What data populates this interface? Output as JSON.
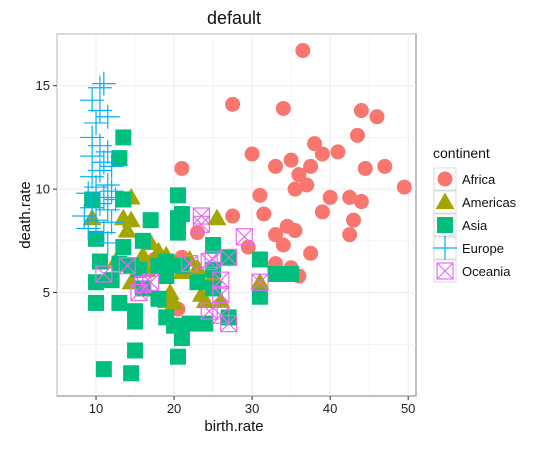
{
  "chart_data": {
    "type": "scatter",
    "title": "default",
    "xlabel": "birth.rate",
    "ylabel": "death.rate",
    "xlim": [
      5,
      51
    ],
    "ylim": [
      0,
      17.5
    ],
    "xticks": [
      10,
      20,
      30,
      40,
      50
    ],
    "yticks": [
      5,
      10,
      15
    ],
    "grid": true,
    "legend": {
      "title": "continent",
      "position": "right"
    },
    "series": [
      {
        "name": "Africa",
        "shape": "circle",
        "color": "#F8766D",
        "points": [
          [
            36.5,
            16.7
          ],
          [
            27.5,
            14.1
          ],
          [
            34,
            13.9
          ],
          [
            44,
            13.8
          ],
          [
            46,
            13.5
          ],
          [
            43.5,
            12.6
          ],
          [
            38,
            12.2
          ],
          [
            41,
            11.8
          ],
          [
            39,
            11.7
          ],
          [
            35,
            11.4
          ],
          [
            33,
            11.1
          ],
          [
            37.5,
            11.1
          ],
          [
            44.5,
            11.0
          ],
          [
            47,
            11.1
          ],
          [
            21,
            11.0
          ],
          [
            30,
            11.7
          ],
          [
            36,
            10.7
          ],
          [
            37,
            10.2
          ],
          [
            49.5,
            10.1
          ],
          [
            35.5,
            10.0
          ],
          [
            31,
            9.7
          ],
          [
            40,
            9.6
          ],
          [
            42.5,
            9.6
          ],
          [
            44,
            9.4
          ],
          [
            39,
            8.9
          ],
          [
            31.5,
            8.8
          ],
          [
            43,
            8.5
          ],
          [
            34.5,
            8.2
          ],
          [
            35.5,
            8.0
          ],
          [
            27.5,
            8.7
          ],
          [
            33,
            7.8
          ],
          [
            29.5,
            7.2
          ],
          [
            34,
            7.3
          ],
          [
            37.5,
            6.9
          ],
          [
            33,
            6.4
          ],
          [
            35,
            6.2
          ],
          [
            36,
            5.8
          ],
          [
            42.5,
            7.8
          ],
          [
            23,
            7.9
          ],
          [
            21,
            6.7
          ],
          [
            17.5,
            6.6
          ],
          [
            20.5,
            4.2
          ]
        ]
      },
      {
        "name": "Americas",
        "shape": "triangle",
        "color": "#A3A500",
        "points": [
          [
            14.5,
            9.6
          ],
          [
            9.5,
            8.6
          ],
          [
            14.5,
            8.5
          ],
          [
            13.5,
            8.6
          ],
          [
            14,
            8.0
          ],
          [
            17,
            7.4
          ],
          [
            18,
            7.0
          ],
          [
            16,
            6.8
          ],
          [
            12.5,
            6.5
          ],
          [
            19,
            6.8
          ],
          [
            20,
            6.4
          ],
          [
            22,
            6.6
          ],
          [
            23,
            6.2
          ],
          [
            21,
            6.0
          ],
          [
            25,
            5.8
          ],
          [
            14.5,
            5.5
          ],
          [
            19.5,
            5.0
          ],
          [
            20,
            4.5
          ],
          [
            23.5,
            4.9
          ],
          [
            24,
            4.6
          ],
          [
            26,
            4.6
          ],
          [
            19,
            4.6
          ],
          [
            16.5,
            6.1
          ],
          [
            25.5,
            8.6
          ],
          [
            31,
            5.5
          ]
        ]
      },
      {
        "name": "Asia",
        "shape": "square",
        "color": "#00BF7D",
        "points": [
          [
            13.5,
            12.5
          ],
          [
            13,
            11.5
          ],
          [
            9.5,
            9.5
          ],
          [
            13.5,
            9.5
          ],
          [
            20.5,
            9.7
          ],
          [
            20.5,
            8.6
          ],
          [
            21,
            8.8
          ],
          [
            17,
            8.5
          ],
          [
            16,
            7.5
          ],
          [
            10,
            7.6
          ],
          [
            13.5,
            7.2
          ],
          [
            20.5,
            7.9
          ],
          [
            25,
            7.3
          ],
          [
            10.5,
            6.5
          ],
          [
            13,
            6.4
          ],
          [
            14.5,
            6.3
          ],
          [
            15.5,
            6.1
          ],
          [
            18,
            6.3
          ],
          [
            19,
            6.5
          ],
          [
            21,
            6.3
          ],
          [
            25,
            6.1
          ],
          [
            27,
            6.7
          ],
          [
            31,
            6.6
          ],
          [
            35,
            5.9
          ],
          [
            33,
            5.9
          ],
          [
            12,
            5.6
          ],
          [
            10,
            5.5
          ],
          [
            16,
            5.2
          ],
          [
            19,
            5.8
          ],
          [
            23,
            5.5
          ],
          [
            25,
            5.2
          ],
          [
            13,
            4.5
          ],
          [
            10,
            4.5
          ],
          [
            15,
            4.1
          ],
          [
            18,
            4.7
          ],
          [
            19,
            3.8
          ],
          [
            20,
            3.4
          ],
          [
            21,
            2.8
          ],
          [
            22,
            3.5
          ],
          [
            24,
            3.5
          ],
          [
            27,
            3.8
          ],
          [
            31,
            4.8
          ],
          [
            15,
            3.6
          ],
          [
            15,
            2.2
          ],
          [
            20.5,
            1.9
          ],
          [
            11,
            1.3
          ],
          [
            14.5,
            1.1
          ]
        ]
      },
      {
        "name": "Europe",
        "shape": "plus",
        "color": "#00B0F6",
        "points": [
          [
            10.5,
            14.9
          ],
          [
            11,
            15.1
          ],
          [
            9.5,
            14.3
          ],
          [
            10.5,
            13.8
          ],
          [
            11.5,
            13.5
          ],
          [
            10,
            13.2
          ],
          [
            9.5,
            12.5
          ],
          [
            10.5,
            12.1
          ],
          [
            11.5,
            11.8
          ],
          [
            9.5,
            11.6
          ],
          [
            11,
            11.3
          ],
          [
            12,
            11.1
          ],
          [
            10.5,
            10.9
          ],
          [
            9.5,
            10.6
          ],
          [
            11.5,
            10.2
          ],
          [
            10,
            10.1
          ],
          [
            12,
            9.9
          ],
          [
            9,
            9.8
          ],
          [
            11,
            9.6
          ],
          [
            12.5,
            9.5
          ],
          [
            10.5,
            9.3
          ],
          [
            9.5,
            9.1
          ],
          [
            11.5,
            9.0
          ],
          [
            8.5,
            8.7
          ],
          [
            10,
            8.5
          ],
          [
            12,
            8.4
          ],
          [
            9,
            8.1
          ],
          [
            11,
            7.9
          ],
          [
            11.5,
            7.4
          ]
        ]
      },
      {
        "name": "Oceania",
        "shape": "xbox",
        "color": "#E76BF3",
        "points": [
          [
            11,
            5.9
          ],
          [
            23.5,
            8.7
          ],
          [
            23.5,
            8.3
          ],
          [
            27,
            6.7
          ],
          [
            29,
            7.7
          ],
          [
            24.5,
            6.5
          ],
          [
            26,
            5.6
          ],
          [
            26,
            4.9
          ],
          [
            24.5,
            4.1
          ],
          [
            26,
            3.9
          ],
          [
            27,
            3.5
          ],
          [
            31,
            5.5
          ],
          [
            17,
            5.5
          ],
          [
            16,
            5.4
          ],
          [
            14,
            6.3
          ],
          [
            15.5,
            5.0
          ],
          [
            22,
            6.4
          ],
          [
            25,
            6.6
          ]
        ]
      }
    ]
  }
}
